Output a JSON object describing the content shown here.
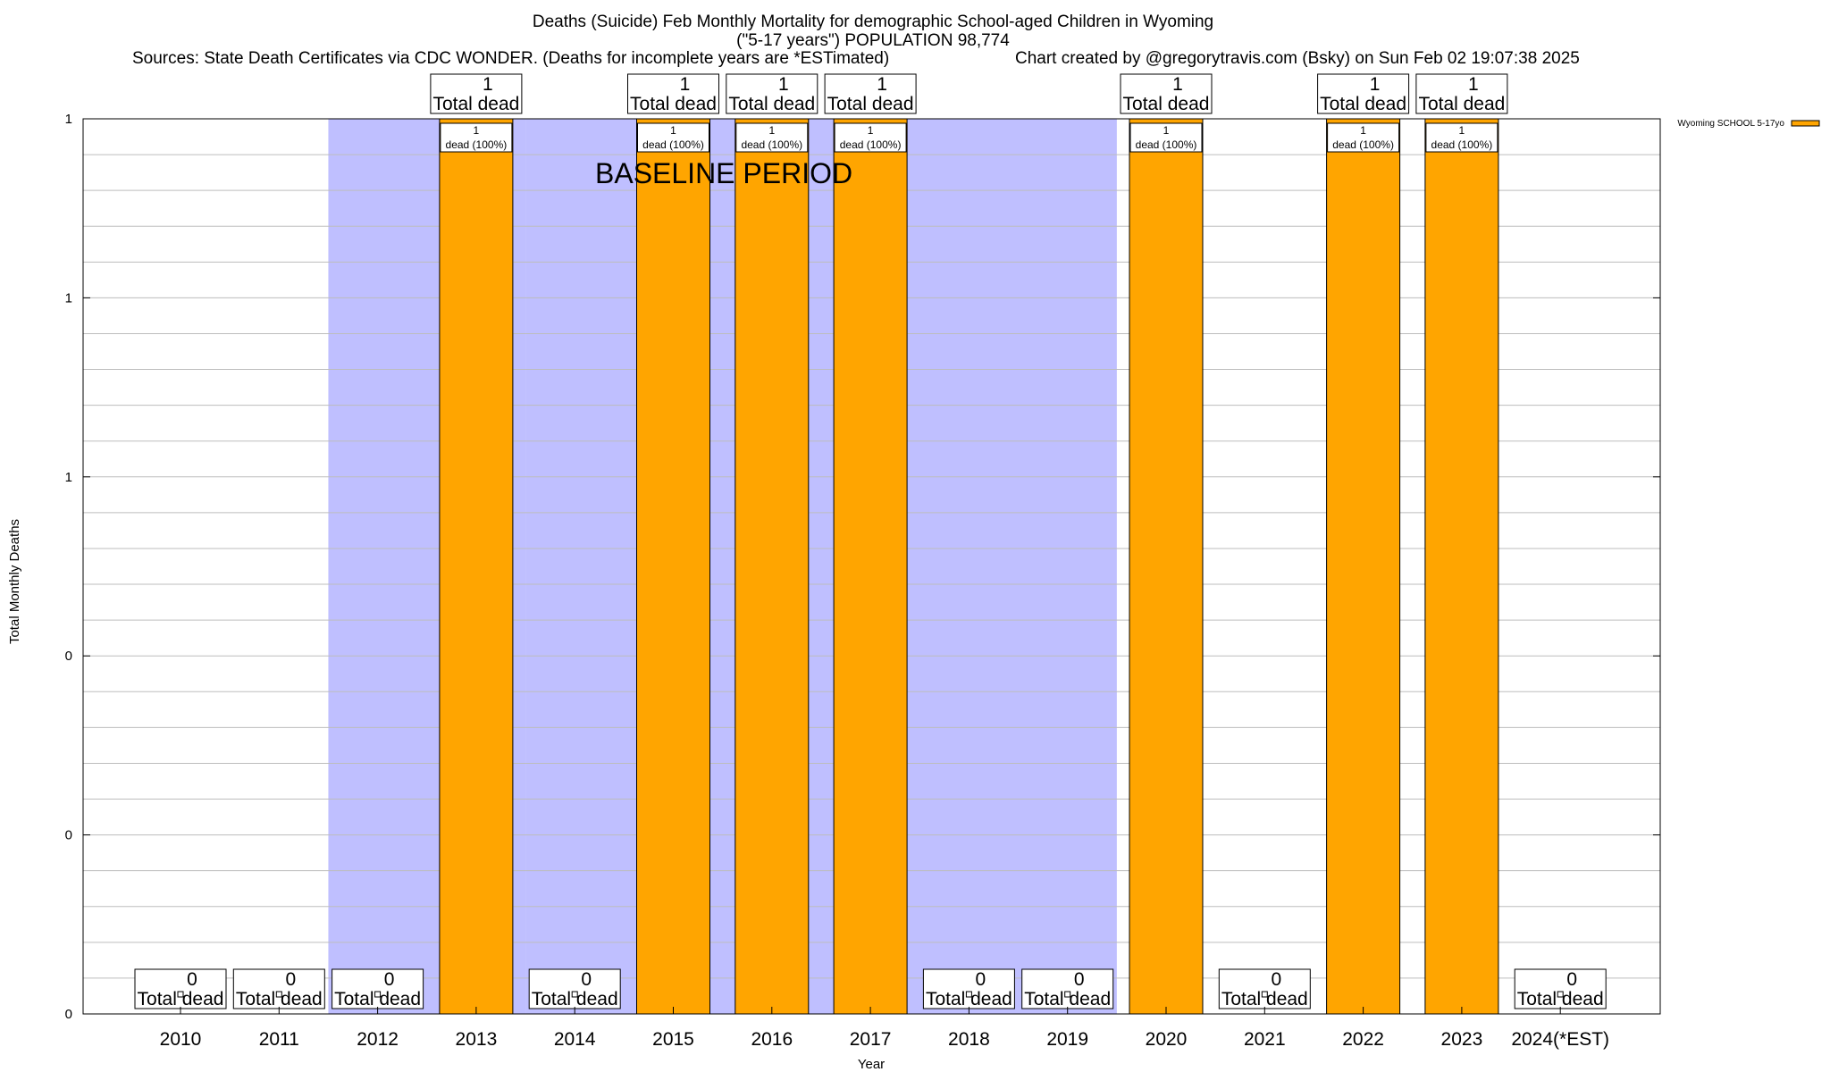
{
  "chart_data": {
    "type": "bar",
    "title_lines": [
      "Deaths (Suicide) Feb Monthly Mortality for demographic School-aged Children in Wyoming",
      "(\"5-17 years\") POPULATION 98,774"
    ],
    "sources_text": "Sources: State Death Certificates via CDC WONDER. (Deaths for incomplete years are *ESTimated)",
    "credit_text": "Chart created by @gregorytravis.com (Bsky) on Sun Feb 02 19:07:38 2025",
    "xlabel": "Year",
    "ylabel": "Total Monthly Deaths",
    "categories": [
      "2010",
      "2011",
      "2012",
      "2013",
      "2014",
      "2015",
      "2016",
      "2017",
      "2018",
      "2019",
      "2020",
      "2021",
      "2022",
      "2023",
      "2024(*EST)"
    ],
    "series": [
      {
        "name": "Wyoming SCHOOL 5-17yo",
        "color": "#ffa500",
        "values": [
          0,
          0,
          0,
          1,
          0,
          1,
          1,
          1,
          0,
          0,
          1,
          0,
          1,
          1,
          0
        ]
      }
    ],
    "ylim": [
      0,
      1
    ],
    "y_tick_labels": [
      "0",
      "0",
      "0",
      "1",
      "1",
      "1"
    ],
    "total_label_suffix": "Total dead",
    "bar_inner_label": "dead (100%)",
    "baseline_label": "BASELINE PERIOD",
    "baseline_shading_color": "#bfbfff",
    "baseline_shading_ranges": [
      [
        "2012",
        "2013"
      ],
      [
        "2014",
        "2019"
      ]
    ],
    "grid": true,
    "legend_position": "top-right"
  }
}
